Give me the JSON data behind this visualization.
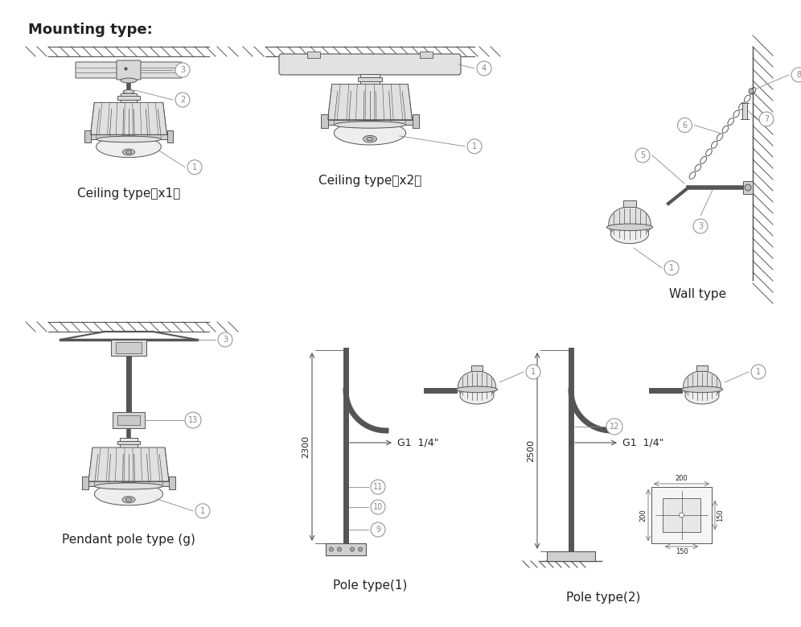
{
  "title": "Mounting type:",
  "background_color": "#ffffff",
  "line_color": "#555555",
  "text_color": "#222222",
  "label_color": "#888888",
  "captions": [
    "Ceiling type（x1）",
    "Ceiling type（x2）",
    "Wall type",
    "Pendant pole type (g)",
    "Pole type(1)",
    "Pole type(2)"
  ],
  "figsize": [
    9.96,
    7.79
  ],
  "dpi": 100
}
